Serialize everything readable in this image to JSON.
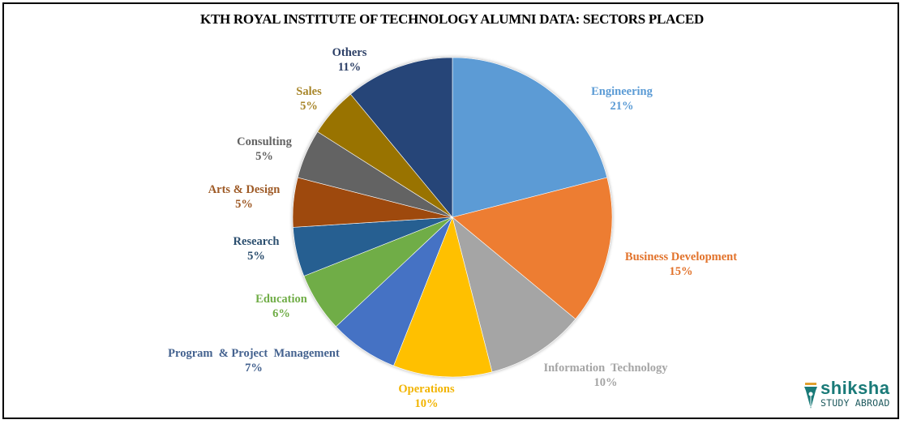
{
  "title": "KTH ROYAL INSTITUTE OF TECHNOLOGY ALUMNI DATA: SECTORS PLACED",
  "logo": {
    "brand": "shiksha",
    "sub": "STUDY ABROAD",
    "icon": "pen-nib-icon"
  },
  "chart_data": {
    "type": "pie",
    "title": "KTH ROYAL INSTITUTE OF TECHNOLOGY ALUMNI DATA: SECTORS PLACED",
    "start_angle": "12 o'clock, clockwise",
    "categories": [
      "Engineering",
      "Business Development",
      "Information Technology",
      "Operations",
      "Program & Project Management",
      "Education",
      "Research",
      "Arts & Design",
      "Consulting",
      "Sales",
      "Others"
    ],
    "values": [
      21,
      15,
      10,
      10,
      7,
      6,
      5,
      5,
      5,
      5,
      11
    ],
    "unit": "%",
    "colors": [
      "#5b9bd5",
      "#ed7d31",
      "#a5a5a5",
      "#ffc000",
      "#4472c4",
      "#70ad47",
      "#255e91",
      "#9e480e",
      "#636363",
      "#997300",
      "#264478"
    ],
    "label_colors": [
      "#5b9bd5",
      "#e2732c",
      "#a5a5a5",
      "#f2b400",
      "#44628f",
      "#70ad47",
      "#2c4f6f",
      "#9e5a26",
      "#636363",
      "#a8862a",
      "#2c3f66"
    ],
    "legend": "none (data labels outside slices)"
  },
  "labels": [
    {
      "name": "Engineering",
      "pct": "21%"
    },
    {
      "name": "Business Development",
      "pct": "15%"
    },
    {
      "name": "Information  Technology",
      "pct": "10%"
    },
    {
      "name": "Operations",
      "pct": "10%"
    },
    {
      "name": "Program  & Project  Management",
      "pct": "7%"
    },
    {
      "name": "Education",
      "pct": "6%"
    },
    {
      "name": "Research",
      "pct": "5%"
    },
    {
      "name": "Arts & Design",
      "pct": "5%"
    },
    {
      "name": "Consulting",
      "pct": "5%"
    },
    {
      "name": "Sales",
      "pct": "5%"
    },
    {
      "name": "Others",
      "pct": "11%"
    }
  ]
}
